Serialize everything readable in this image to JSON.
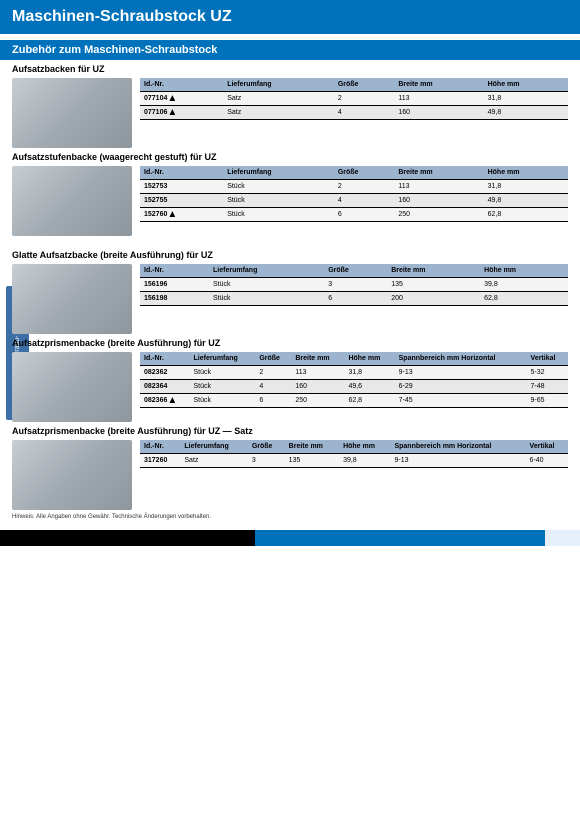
{
  "header": {
    "title": "Maschinen-Schraubstock UZ"
  },
  "subheader": {
    "title": "Zubehör zum Maschinen-Schraubstock"
  },
  "side_tab": "Maschinen-Schraub-\nstock UZ",
  "sections": [
    {
      "title": "Aufsatzbacken für UZ",
      "columns": [
        "Id.-Nr.",
        "Lieferumfang",
        "Größe",
        "Breite mm",
        "Höhe mm"
      ],
      "rows": [
        [
          "077104",
          "Satz",
          "2",
          "113",
          "31,8"
        ],
        [
          "077106",
          "Satz",
          "4",
          "160",
          "49,8"
        ]
      ],
      "warn_rows": [
        0,
        1
      ]
    },
    {
      "title": "Aufsatzstufenbacke (waagerecht gestuft) für UZ",
      "columns": [
        "Id.-Nr.",
        "Lieferumfang",
        "Größe",
        "Breite mm",
        "Höhe mm"
      ],
      "rows": [
        [
          "152753",
          "Stück",
          "2",
          "113",
          "31,8"
        ],
        [
          "152755",
          "Stück",
          "4",
          "160",
          "49,8"
        ],
        [
          "152760",
          "Stück",
          "6",
          "250",
          "62,8"
        ]
      ],
      "warn_rows": [
        2
      ],
      "bluebox": true
    },
    {
      "title": "Glatte Aufsatzbacke (breite Ausführung) für UZ",
      "columns": [
        "Id.-Nr.",
        "Lieferumfang",
        "Größe",
        "Breite mm",
        "Höhe mm"
      ],
      "rows": [
        [
          "156196",
          "Stück",
          "3",
          "135",
          "39,8"
        ],
        [
          "156198",
          "Stück",
          "6",
          "200",
          "62,8"
        ]
      ],
      "warn_rows": []
    },
    {
      "title": "Aufsatzprismenbacke (breite Ausführung) für UZ",
      "columns": [
        "Id.-Nr.",
        "Lieferumfang",
        "Größe",
        "Breite mm",
        "Höhe mm",
        "Spannbereich mm\nHorizontal",
        "Vertikal"
      ],
      "rows": [
        [
          "082362",
          "Stück",
          "2",
          "113",
          "31,8",
          "9-13",
          "5-32"
        ],
        [
          "082364",
          "Stück",
          "4",
          "160",
          "49,6",
          "6-29",
          "7-48"
        ],
        [
          "082366",
          "Stück",
          "6",
          "250",
          "62,8",
          "7-45",
          "9-65"
        ]
      ],
      "warn_rows": [
        2
      ]
    },
    {
      "title": "Aufsatzprismenbacke (breite Ausführung) für UZ — Satz",
      "columns": [
        "Id.-Nr.",
        "Lieferumfang",
        "Größe",
        "Breite mm",
        "Höhe mm",
        "Spannbereich mm\nHorizontal",
        "Vertikal"
      ],
      "rows": [
        [
          "317260",
          "Satz",
          "3",
          "135",
          "39,8",
          "9-13",
          "6-40"
        ]
      ],
      "warn_rows": []
    }
  ],
  "note": "Hinweis: Alle Angaben ohne Gewähr. Technische Änderungen vorbehalten.",
  "colors": {
    "blue": "#0072bc",
    "thead": "#9db4ce",
    "side": "#3b6fa6"
  }
}
